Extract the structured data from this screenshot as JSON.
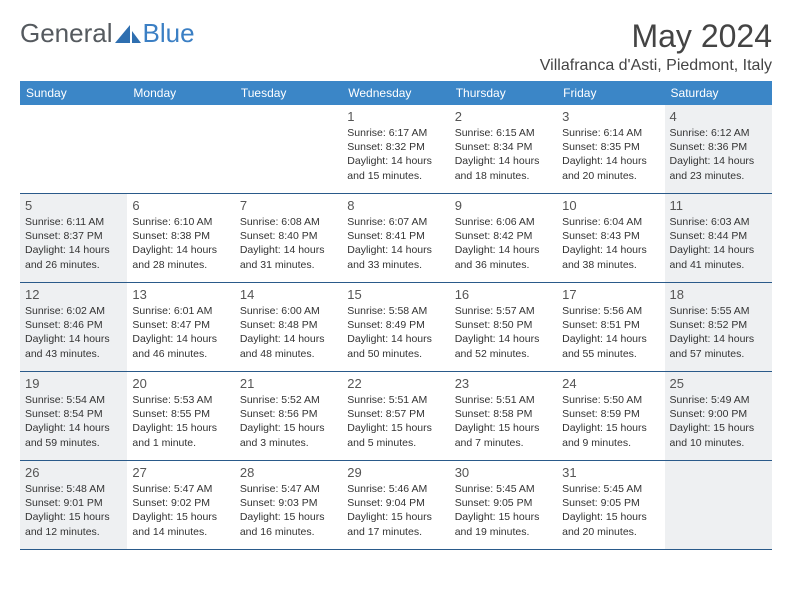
{
  "brand": {
    "part1": "General",
    "part2": "Blue"
  },
  "title": "May 2024",
  "location": "Villafranca d'Asti, Piedmont, Italy",
  "colors": {
    "header_bg": "#3b86c7",
    "row_border": "#2a5a8a",
    "shaded_bg": "#eef0f2",
    "brand_gray": "#555a5f",
    "brand_blue": "#3b7fc4"
  },
  "weekdays": [
    "Sunday",
    "Monday",
    "Tuesday",
    "Wednesday",
    "Thursday",
    "Friday",
    "Saturday"
  ],
  "weeks": [
    [
      {
        "num": "",
        "sunrise": "",
        "sunset": "",
        "daylight": "",
        "shaded": false
      },
      {
        "num": "",
        "sunrise": "",
        "sunset": "",
        "daylight": "",
        "shaded": false
      },
      {
        "num": "",
        "sunrise": "",
        "sunset": "",
        "daylight": "",
        "shaded": false
      },
      {
        "num": "1",
        "sunrise": "6:17 AM",
        "sunset": "8:32 PM",
        "daylight": "14 hours and 15 minutes.",
        "shaded": false
      },
      {
        "num": "2",
        "sunrise": "6:15 AM",
        "sunset": "8:34 PM",
        "daylight": "14 hours and 18 minutes.",
        "shaded": false
      },
      {
        "num": "3",
        "sunrise": "6:14 AM",
        "sunset": "8:35 PM",
        "daylight": "14 hours and 20 minutes.",
        "shaded": false
      },
      {
        "num": "4",
        "sunrise": "6:12 AM",
        "sunset": "8:36 PM",
        "daylight": "14 hours and 23 minutes.",
        "shaded": true
      }
    ],
    [
      {
        "num": "5",
        "sunrise": "6:11 AM",
        "sunset": "8:37 PM",
        "daylight": "14 hours and 26 minutes.",
        "shaded": true
      },
      {
        "num": "6",
        "sunrise": "6:10 AM",
        "sunset": "8:38 PM",
        "daylight": "14 hours and 28 minutes.",
        "shaded": false
      },
      {
        "num": "7",
        "sunrise": "6:08 AM",
        "sunset": "8:40 PM",
        "daylight": "14 hours and 31 minutes.",
        "shaded": false
      },
      {
        "num": "8",
        "sunrise": "6:07 AM",
        "sunset": "8:41 PM",
        "daylight": "14 hours and 33 minutes.",
        "shaded": false
      },
      {
        "num": "9",
        "sunrise": "6:06 AM",
        "sunset": "8:42 PM",
        "daylight": "14 hours and 36 minutes.",
        "shaded": false
      },
      {
        "num": "10",
        "sunrise": "6:04 AM",
        "sunset": "8:43 PM",
        "daylight": "14 hours and 38 minutes.",
        "shaded": false
      },
      {
        "num": "11",
        "sunrise": "6:03 AM",
        "sunset": "8:44 PM",
        "daylight": "14 hours and 41 minutes.",
        "shaded": true
      }
    ],
    [
      {
        "num": "12",
        "sunrise": "6:02 AM",
        "sunset": "8:46 PM",
        "daylight": "14 hours and 43 minutes.",
        "shaded": true
      },
      {
        "num": "13",
        "sunrise": "6:01 AM",
        "sunset": "8:47 PM",
        "daylight": "14 hours and 46 minutes.",
        "shaded": false
      },
      {
        "num": "14",
        "sunrise": "6:00 AM",
        "sunset": "8:48 PM",
        "daylight": "14 hours and 48 minutes.",
        "shaded": false
      },
      {
        "num": "15",
        "sunrise": "5:58 AM",
        "sunset": "8:49 PM",
        "daylight": "14 hours and 50 minutes.",
        "shaded": false
      },
      {
        "num": "16",
        "sunrise": "5:57 AM",
        "sunset": "8:50 PM",
        "daylight": "14 hours and 52 minutes.",
        "shaded": false
      },
      {
        "num": "17",
        "sunrise": "5:56 AM",
        "sunset": "8:51 PM",
        "daylight": "14 hours and 55 minutes.",
        "shaded": false
      },
      {
        "num": "18",
        "sunrise": "5:55 AM",
        "sunset": "8:52 PM",
        "daylight": "14 hours and 57 minutes.",
        "shaded": true
      }
    ],
    [
      {
        "num": "19",
        "sunrise": "5:54 AM",
        "sunset": "8:54 PM",
        "daylight": "14 hours and 59 minutes.",
        "shaded": true
      },
      {
        "num": "20",
        "sunrise": "5:53 AM",
        "sunset": "8:55 PM",
        "daylight": "15 hours and 1 minute.",
        "shaded": false
      },
      {
        "num": "21",
        "sunrise": "5:52 AM",
        "sunset": "8:56 PM",
        "daylight": "15 hours and 3 minutes.",
        "shaded": false
      },
      {
        "num": "22",
        "sunrise": "5:51 AM",
        "sunset": "8:57 PM",
        "daylight": "15 hours and 5 minutes.",
        "shaded": false
      },
      {
        "num": "23",
        "sunrise": "5:51 AM",
        "sunset": "8:58 PM",
        "daylight": "15 hours and 7 minutes.",
        "shaded": false
      },
      {
        "num": "24",
        "sunrise": "5:50 AM",
        "sunset": "8:59 PM",
        "daylight": "15 hours and 9 minutes.",
        "shaded": false
      },
      {
        "num": "25",
        "sunrise": "5:49 AM",
        "sunset": "9:00 PM",
        "daylight": "15 hours and 10 minutes.",
        "shaded": true
      }
    ],
    [
      {
        "num": "26",
        "sunrise": "5:48 AM",
        "sunset": "9:01 PM",
        "daylight": "15 hours and 12 minutes.",
        "shaded": true
      },
      {
        "num": "27",
        "sunrise": "5:47 AM",
        "sunset": "9:02 PM",
        "daylight": "15 hours and 14 minutes.",
        "shaded": false
      },
      {
        "num": "28",
        "sunrise": "5:47 AM",
        "sunset": "9:03 PM",
        "daylight": "15 hours and 16 minutes.",
        "shaded": false
      },
      {
        "num": "29",
        "sunrise": "5:46 AM",
        "sunset": "9:04 PM",
        "daylight": "15 hours and 17 minutes.",
        "shaded": false
      },
      {
        "num": "30",
        "sunrise": "5:45 AM",
        "sunset": "9:05 PM",
        "daylight": "15 hours and 19 minutes.",
        "shaded": false
      },
      {
        "num": "31",
        "sunrise": "5:45 AM",
        "sunset": "9:05 PM",
        "daylight": "15 hours and 20 minutes.",
        "shaded": false
      },
      {
        "num": "",
        "sunrise": "",
        "sunset": "",
        "daylight": "",
        "shaded": true
      }
    ]
  ]
}
